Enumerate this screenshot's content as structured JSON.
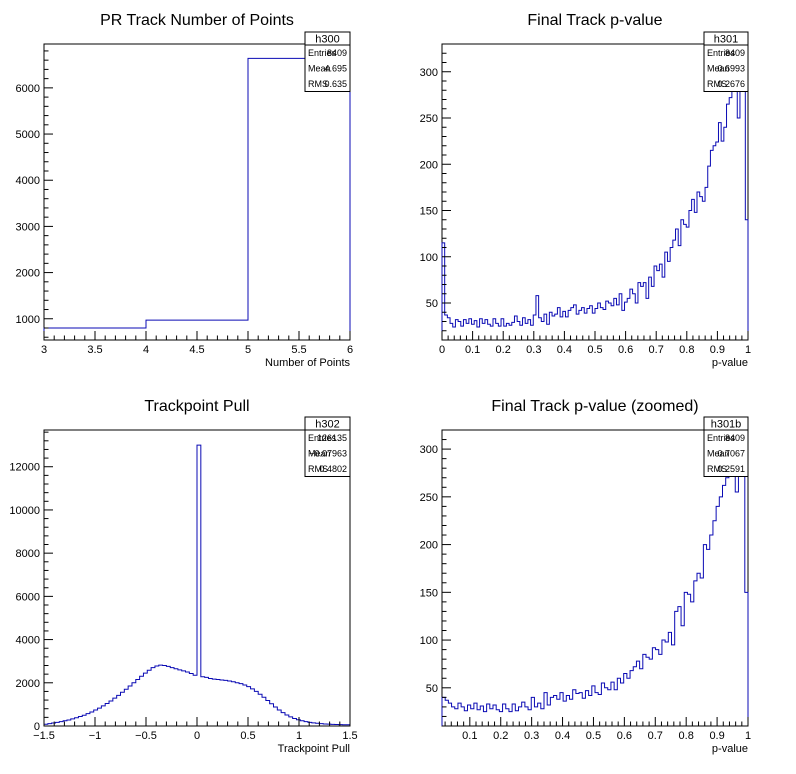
{
  "chart_data": [
    {
      "type": "histogram",
      "title": "PR Track Number of Points",
      "xlabel": "Number of Points",
      "ylabel": "",
      "xlim": [
        3,
        6
      ],
      "ylim": [
        540,
        6950
      ],
      "xticks": [
        3,
        3.5,
        4,
        4.5,
        5,
        5.5,
        6
      ],
      "xtick_labels": [
        "3",
        "3.5",
        "4",
        "4.5",
        "5",
        "5.5",
        "6"
      ],
      "yticks": [
        1000,
        2000,
        3000,
        4000,
        5000,
        6000
      ],
      "ytick_labels": [
        "1000",
        "2000",
        "3000",
        "4000",
        "5000",
        "6000"
      ],
      "bin_edges": [
        3,
        4,
        5,
        6
      ],
      "values": [
        800,
        970,
        6640
      ],
      "stats": {
        "name": "h300",
        "rows": [
          [
            "Entries",
            "8409"
          ],
          [
            "Mean",
            "4.695"
          ],
          [
            "RMS",
            "0.635"
          ]
        ]
      }
    },
    {
      "type": "histogram",
      "title": "Final Track p-value",
      "xlabel": "p-value",
      "ylabel": "",
      "xlim": [
        0,
        1
      ],
      "ylim": [
        10,
        330
      ],
      "xticks": [
        0,
        0.1,
        0.2,
        0.3,
        0.4,
        0.5,
        0.6,
        0.7,
        0.8,
        0.9,
        1
      ],
      "xtick_labels": [
        "0",
        "0.1",
        "0.2",
        "0.3",
        "0.4",
        "0.5",
        "0.6",
        "0.7",
        "0.8",
        "0.9",
        "1"
      ],
      "yticks": [
        50,
        100,
        150,
        200,
        250,
        300
      ],
      "ytick_labels": [
        "50",
        "100",
        "150",
        "200",
        "250",
        "300"
      ],
      "bin_range": [
        0,
        1
      ],
      "values": [
        115,
        37,
        34,
        28,
        24,
        32,
        30,
        25,
        32,
        28,
        33,
        27,
        31,
        24,
        33,
        28,
        32,
        27,
        25,
        33,
        28,
        25,
        33,
        25,
        28,
        26,
        29,
        36,
        30,
        26,
        34,
        28,
        32,
        26,
        37,
        58,
        34,
        30,
        38,
        27,
        40,
        36,
        38,
        45,
        35,
        41,
        35,
        42,
        45,
        48,
        38,
        42,
        45,
        39,
        44,
        47,
        39,
        44,
        50,
        45,
        43,
        52,
        50,
        47,
        55,
        48,
        60,
        42,
        51,
        55,
        65,
        60,
        50,
        72,
        68,
        72,
        55,
        78,
        68,
        90,
        85,
        92,
        78,
        105,
        95,
        110,
        118,
        130,
        112,
        140,
        135,
        132,
        150,
        162,
        148,
        170,
        165,
        160,
        175,
        198,
        215,
        220,
        224,
        245,
        225,
        240,
        265,
        272,
        300,
        284,
        250,
        290,
        320,
        140
      ],
      "stats": {
        "name": "h301",
        "rows": [
          [
            "Entries",
            "8409"
          ],
          [
            "Mean",
            "0.6993"
          ],
          [
            "RMS",
            "0.2676"
          ]
        ]
      }
    },
    {
      "type": "histogram",
      "title": "Trackpoint Pull",
      "xlabel": "Trackpoint Pull",
      "ylabel": "",
      "xlim": [
        -1.5,
        1.5
      ],
      "ylim": [
        0,
        13700
      ],
      "xticks": [
        -1.5,
        -1,
        -0.5,
        0,
        0.5,
        1,
        1.5
      ],
      "xtick_labels": [
        "−1.5",
        "−1",
        "−0.5",
        "0",
        "0.5",
        "1",
        "1.5"
      ],
      "yticks": [
        0,
        2000,
        4000,
        6000,
        8000,
        10000,
        12000
      ],
      "ytick_labels": [
        "0",
        "2000",
        "4000",
        "6000",
        "8000",
        "10000",
        "12000"
      ],
      "bin_range": [
        -1.5,
        1.5
      ],
      "values": [
        80,
        110,
        140,
        170,
        200,
        240,
        280,
        330,
        380,
        440,
        500,
        570,
        650,
        740,
        830,
        930,
        1040,
        1160,
        1290,
        1420,
        1560,
        1700,
        1850,
        2000,
        2150,
        2300,
        2450,
        2580,
        2700,
        2780,
        2820,
        2800,
        2760,
        2700,
        2650,
        2600,
        2550,
        2500,
        2430,
        2350,
        13000,
        2280,
        2250,
        2200,
        2170,
        2150,
        2130,
        2110,
        2080,
        2050,
        2000,
        1960,
        1900,
        1820,
        1720,
        1600,
        1470,
        1330,
        1180,
        1030,
        880,
        740,
        620,
        510,
        420,
        350,
        290,
        240,
        200,
        170,
        145,
        125,
        110,
        95,
        85,
        75,
        70,
        65,
        60,
        55
      ],
      "stats": {
        "name": "h302",
        "rows": [
          [
            "Entries",
            "126135"
          ],
          [
            "Mean",
            "−0.07963"
          ],
          [
            "RMS",
            "0.4802"
          ]
        ]
      }
    },
    {
      "type": "histogram",
      "title": "Final Track p-value (zoomed)",
      "xlabel": "p-value",
      "ylabel": "",
      "xlim": [
        0.01,
        1
      ],
      "ylim": [
        10,
        320
      ],
      "xticks": [
        0.1,
        0.2,
        0.3,
        0.4,
        0.5,
        0.6,
        0.7,
        0.8,
        0.9,
        1
      ],
      "xtick_labels": [
        "0.1",
        "0.2",
        "0.3",
        "0.4",
        "0.5",
        "0.6",
        "0.7",
        "0.8",
        "0.9",
        "1"
      ],
      "yticks": [
        50,
        100,
        150,
        200,
        250,
        300
      ],
      "ytick_labels": [
        "50",
        "100",
        "150",
        "200",
        "250",
        "300"
      ],
      "bin_range": [
        0.01,
        1
      ],
      "values": [
        40,
        37,
        34,
        30,
        28,
        34,
        30,
        26,
        32,
        28,
        34,
        27,
        31,
        25,
        33,
        28,
        32,
        27,
        25,
        33,
        28,
        25,
        33,
        26,
        30,
        35,
        30,
        27,
        40,
        30,
        34,
        28,
        45,
        32,
        40,
        42,
        38,
        45,
        36,
        42,
        38,
        48,
        44,
        45,
        39,
        47,
        42,
        52,
        45,
        43,
        55,
        50,
        48,
        56,
        48,
        60,
        55,
        65,
        60,
        68,
        72,
        78,
        70,
        85,
        82,
        80,
        92,
        90,
        85,
        100,
        98,
        108,
        95,
        130,
        135,
        115,
        150,
        148,
        140,
        162,
        170,
        165,
        200,
        195,
        210,
        225,
        240,
        250,
        262,
        270,
        300,
        280,
        255,
        290,
        310,
        150
      ],
      "stats": {
        "name": "h301b",
        "rows": [
          [
            "Entries",
            "8409"
          ],
          [
            "Mean",
            "0.7067"
          ],
          [
            "RMS",
            "0.2591"
          ]
        ]
      }
    }
  ]
}
